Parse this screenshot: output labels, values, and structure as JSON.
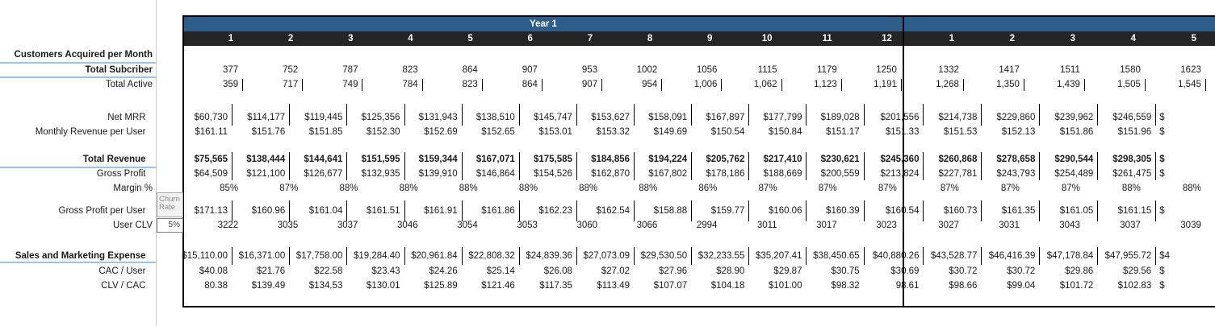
{
  "table": {
    "year1_label": "Year 1",
    "year1_months": [
      "1",
      "2",
      "3",
      "4",
      "5",
      "6",
      "7",
      "8",
      "9",
      "10",
      "11",
      "12"
    ],
    "year2_months": [
      "1",
      "2",
      "3",
      "4",
      "5"
    ],
    "churn": {
      "label": "Churn Rate",
      "value": "5%"
    },
    "colors": {
      "header_blue": "#2d5e8b",
      "header_dark": "#252525",
      "label_underline_blue": "#9dc3e6",
      "border_black": "#000000"
    },
    "rows": [
      {
        "id": "customers",
        "label": "Customers Acquired per Month",
        "y1": [],
        "y2": [],
        "cut": ""
      },
      {
        "id": "total_subscriber",
        "label": "Total Subcriber",
        "y1": [
          "377",
          "752",
          "787",
          "823",
          "864",
          "907",
          "953",
          "1002",
          "1056",
          "1115",
          "1179",
          "1250"
        ],
        "y2": [
          "1332",
          "1417",
          "1511",
          "1580",
          "1623"
        ],
        "cut": ""
      },
      {
        "id": "total_active",
        "label": "Total Active",
        "y1": [
          "359",
          "717",
          "749",
          "784",
          "823",
          "864",
          "907",
          "954",
          "1,006",
          "1,062",
          "1,123",
          "1,191"
        ],
        "y2": [
          "1,268",
          "1,350",
          "1,439",
          "1,505",
          "1,545"
        ],
        "cut": ""
      },
      {
        "id": "net_mrr",
        "label": "Net MRR",
        "y1": [
          "$60,730",
          "$114,177",
          "$119,445",
          "$125,356",
          "$131,943",
          "$138,510",
          "$145,747",
          "$153,627",
          "$158,091",
          "$167,897",
          "$177,799",
          "$189,028"
        ],
        "y2": [
          "$201,556",
          "$214,738",
          "$229,860",
          "$239,962",
          "$246,559"
        ],
        "cut": "$"
      },
      {
        "id": "monthly_rpu",
        "label": "Monthly Revenue per User",
        "y1": [
          "$161.11",
          "$151.76",
          "$151.85",
          "$152.30",
          "$152.69",
          "$152.65",
          "$153.01",
          "$153.32",
          "$149.69",
          "$150.54",
          "$150.84",
          "$151.17"
        ],
        "y2": [
          "$151.33",
          "$151.53",
          "$152.13",
          "$151.86",
          "$151.96"
        ],
        "cut": "$"
      },
      {
        "id": "total_revenue",
        "label": "Total Revenue",
        "y1": [
          "$75,565",
          "$138,444",
          "$144,641",
          "$151,595",
          "$159,344",
          "$167,071",
          "$175,585",
          "$184,856",
          "$194,224",
          "$205,762",
          "$217,410",
          "$230,621"
        ],
        "y2": [
          "$245,360",
          "$260,868",
          "$278,658",
          "$290,544",
          "$298,305"
        ],
        "cut": "$"
      },
      {
        "id": "gross_profit",
        "label": "Gross Profit",
        "y1": [
          "$64,509",
          "$121,100",
          "$126,677",
          "$132,935",
          "$139,910",
          "$146,864",
          "$154,526",
          "$162,870",
          "$167,802",
          "$178,186",
          "$188,669",
          "$200,559"
        ],
        "y2": [
          "$213,824",
          "$227,781",
          "$243,793",
          "$254,489",
          "$261,475"
        ],
        "cut": "$"
      },
      {
        "id": "margin",
        "label": "Margin %",
        "y1": [
          "85%",
          "87%",
          "88%",
          "88%",
          "88%",
          "88%",
          "88%",
          "88%",
          "86%",
          "87%",
          "87%",
          "87%"
        ],
        "y2": [
          "87%",
          "87%",
          "87%",
          "88%",
          "88%"
        ],
        "cut": ""
      },
      {
        "id": "gp_per_user",
        "label": "Gross Profit per User",
        "y1": [
          "$171.13",
          "$160.96",
          "$161.04",
          "$161.51",
          "$161.91",
          "$161.86",
          "$162.23",
          "$162.54",
          "$158.88",
          "$159.77",
          "$160.06",
          "$160.39"
        ],
        "y2": [
          "$160.54",
          "$160.73",
          "$161.35",
          "$161.05",
          "$161.15"
        ],
        "cut": "$"
      },
      {
        "id": "user_clv",
        "label": "User CLV",
        "y1": [
          "3222",
          "3035",
          "3037",
          "3046",
          "3054",
          "3053",
          "3060",
          "3066",
          "2994",
          "3011",
          "3017",
          "3023"
        ],
        "y2": [
          "3027",
          "3031",
          "3043",
          "3037",
          "3039"
        ],
        "cut": ""
      },
      {
        "id": "sm_expense",
        "label": "Sales and Marketing Expense",
        "y1": [
          "$15,110.00",
          "$16,371.00",
          "$17,758.00",
          "$19,284.40",
          "$20,961.84",
          "$22,808.32",
          "$24,839.36",
          "$27,073.09",
          "$29,530.50",
          "$32,233.55",
          "$35,207.41",
          "$38,450.65"
        ],
        "y2": [
          "$40,880.26",
          "$43,528.77",
          "$46,416.39",
          "$47,178.84",
          "$47,955.72"
        ],
        "cut": "$4"
      },
      {
        "id": "cac_user",
        "label": "CAC / User",
        "y1": [
          "$40.08",
          "$21.76",
          "$22.58",
          "$23.43",
          "$24.26",
          "$25.14",
          "$26.08",
          "$27.02",
          "$27.96",
          "$28.90",
          "$29.87",
          "$30.75"
        ],
        "y2": [
          "$30.69",
          "$30.72",
          "$30.72",
          "$29.86",
          "$29.56"
        ],
        "cut": "$"
      },
      {
        "id": "clv_cac",
        "label": "CLV / CAC",
        "y1": [
          "80.38",
          "$139.49",
          "$134.53",
          "$130.01",
          "$125.89",
          "$121.46",
          "$117.35",
          "$113.49",
          "$107.07",
          "$104.18",
          "$101.00",
          "$98.32"
        ],
        "y2": [
          "98.61",
          "$98.66",
          "$99.04",
          "$101.72",
          "$102.83"
        ],
        "cut": "$"
      }
    ]
  }
}
